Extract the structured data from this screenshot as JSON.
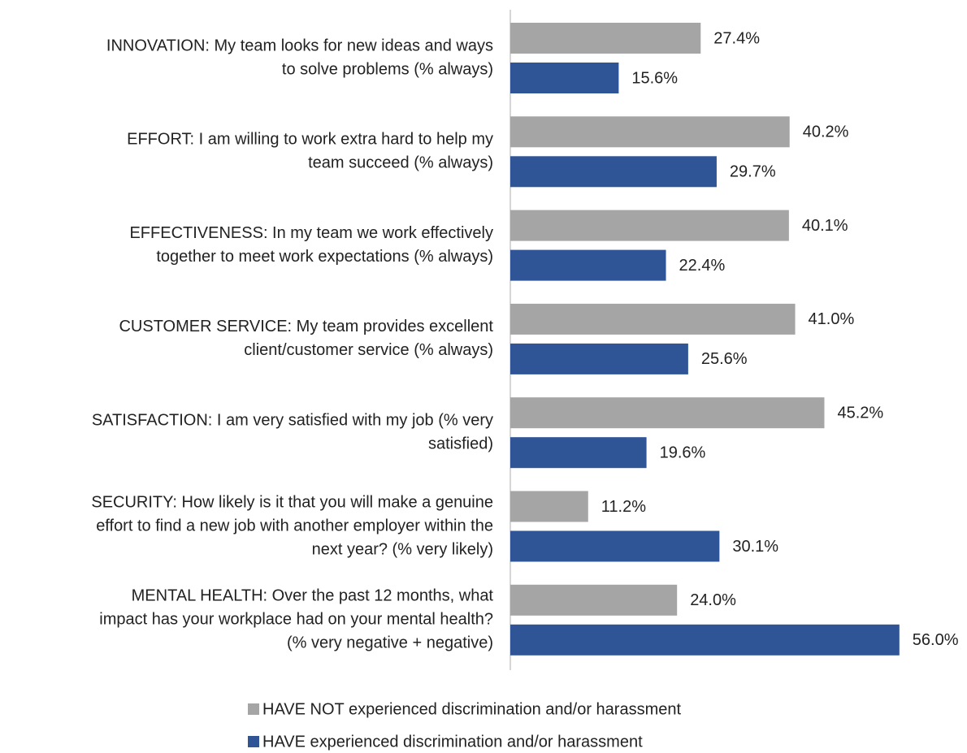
{
  "chart_data": {
    "type": "bar",
    "orientation": "horizontal",
    "categories": [
      [
        "INNOVATION: My team looks for new ideas and ways",
        "to solve problems (% always)"
      ],
      [
        "EFFORT: I am willing to work extra hard to help my",
        "team succeed (% always)"
      ],
      [
        "EFFECTIVENESS: In my team we work effectively",
        "together to meet work expectations (% always)"
      ],
      [
        "CUSTOMER SERVICE: My team provides excellent",
        "client/customer service (% always)"
      ],
      [
        "SATISFACTION: I am very satisfied with my job (% very",
        "satisfied)"
      ],
      [
        "SECURITY: How likely is it that you will make a genuine",
        "effort to find a new job with another employer within the",
        "next year? (% very likely)"
      ],
      [
        "MENTAL HEALTH: Over the past 12 months, what",
        "impact has your workplace had on your mental health?",
        "(% very negative + negative)"
      ]
    ],
    "series": [
      {
        "name": "HAVE NOT experienced discrimination and/or harassment",
        "color": "#a5a5a5",
        "values": [
          27.4,
          40.2,
          40.1,
          41.0,
          45.2,
          11.2,
          24.0
        ],
        "value_labels": [
          "27.4%",
          "40.2%",
          "40.1%",
          "41.0%",
          "45.2%",
          "11.2%",
          "24.0%"
        ]
      },
      {
        "name": "HAVE experienced discrimination and/or harassment",
        "color": "#2f5597",
        "values": [
          15.6,
          29.7,
          22.4,
          25.6,
          19.6,
          30.1,
          56.0
        ],
        "value_labels": [
          "15.6%",
          "29.7%",
          "22.4%",
          "25.6%",
          "19.6%",
          "30.1%",
          "56.0%"
        ]
      }
    ],
    "xlim": [
      0,
      60
    ],
    "legend": "bottom"
  }
}
